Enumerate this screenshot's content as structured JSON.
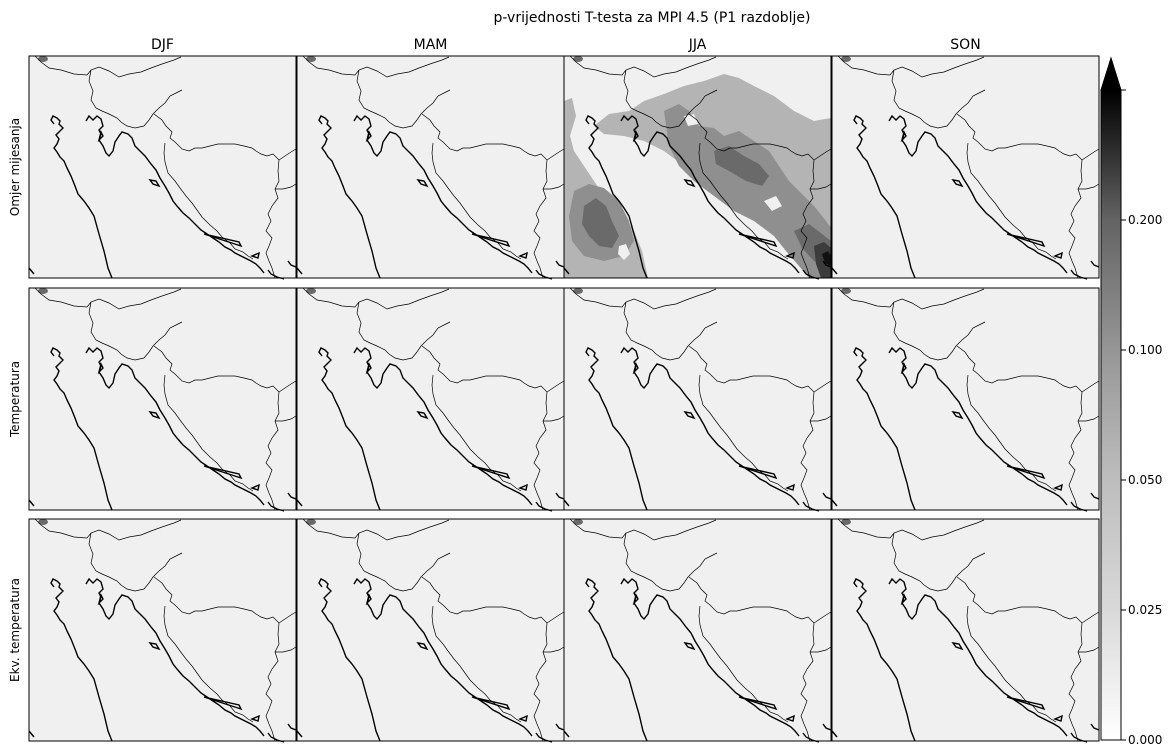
{
  "chart_data": {
    "type": "heatmap",
    "title": "p-vrijednosti T-testa za MPI 4.5 (P1 razdoblje)",
    "columns": [
      "DJF",
      "MAM",
      "JJA",
      "SON"
    ],
    "rows": [
      "Omjer mijesanja",
      "Temperatura",
      "Ekv. temperatura"
    ],
    "colorbar": {
      "ticks": [
        "0.000",
        "0.025",
        "0.050",
        "0.100",
        "0.200"
      ],
      "levels": [
        0,
        0.025,
        0.05,
        0.1,
        0.2,
        0.3
      ],
      "colors": [
        "#f0f0f0",
        "#d6d6d6",
        "#b4b4b4",
        "#8f8f8f",
        "#6a6a6a",
        "#3c3c3c",
        "#111111"
      ],
      "extend": "max",
      "colormap": "Greys"
    },
    "panels": [
      {
        "row": "Omjer mijesanja",
        "col": "DJF",
        "fill": "low",
        "max_p_approx": 0.025
      },
      {
        "row": "Omjer mijesanja",
        "col": "MAM",
        "fill": "low",
        "max_p_approx": 0.025
      },
      {
        "row": "Omjer mijesanja",
        "col": "JJA",
        "fill": "mixed",
        "max_p_approx": 0.3
      },
      {
        "row": "Omjer mijesanja",
        "col": "SON",
        "fill": "low",
        "max_p_approx": 0.025
      },
      {
        "row": "Temperatura",
        "col": "DJF",
        "fill": "low",
        "max_p_approx": 0.025
      },
      {
        "row": "Temperatura",
        "col": "MAM",
        "fill": "low",
        "max_p_approx": 0.025
      },
      {
        "row": "Temperatura",
        "col": "JJA",
        "fill": "low",
        "max_p_approx": 0.025
      },
      {
        "row": "Temperatura",
        "col": "SON",
        "fill": "low",
        "max_p_approx": 0.025
      },
      {
        "row": "Ekv. temperatura",
        "col": "DJF",
        "fill": "low",
        "max_p_approx": 0.025
      },
      {
        "row": "Ekv. temperatura",
        "col": "MAM",
        "fill": "low",
        "max_p_approx": 0.025
      },
      {
        "row": "Ekv. temperatura",
        "col": "JJA",
        "fill": "low",
        "max_p_approx": 0.025
      },
      {
        "row": "Ekv. temperatura",
        "col": "SON",
        "fill": "low",
        "max_p_approx": 0.025
      }
    ]
  }
}
